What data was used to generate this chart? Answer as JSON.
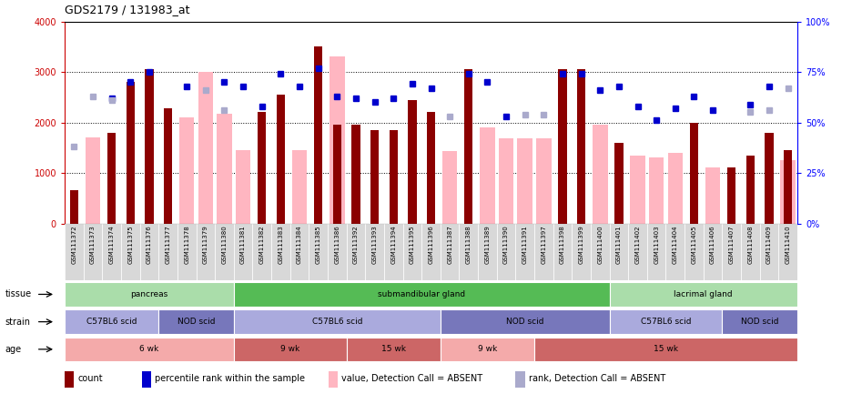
{
  "title": "GDS2179 / 131983_at",
  "samples": [
    "GSM111372",
    "GSM111373",
    "GSM111374",
    "GSM111375",
    "GSM111376",
    "GSM111377",
    "GSM111378",
    "GSM111379",
    "GSM111380",
    "GSM111381",
    "GSM111382",
    "GSM111383",
    "GSM111384",
    "GSM111385",
    "GSM111386",
    "GSM111392",
    "GSM111393",
    "GSM111394",
    "GSM111395",
    "GSM111396",
    "GSM111387",
    "GSM111388",
    "GSM111389",
    "GSM111390",
    "GSM111391",
    "GSM111397",
    "GSM111398",
    "GSM111399",
    "GSM111400",
    "GSM111401",
    "GSM111402",
    "GSM111403",
    "GSM111404",
    "GSM111405",
    "GSM111406",
    "GSM111407",
    "GSM111408",
    "GSM111409",
    "GSM111410"
  ],
  "count": [
    650,
    null,
    1800,
    2800,
    3050,
    2280,
    null,
    null,
    null,
    null,
    2200,
    2550,
    null,
    3500,
    1950,
    1950,
    1850,
    1850,
    2450,
    2200,
    null,
    3050,
    null,
    null,
    null,
    null,
    3050,
    3050,
    null,
    1600,
    null,
    null,
    null,
    2000,
    null,
    1100,
    1350,
    1800,
    1450
  ],
  "value_absent": [
    null,
    1700,
    null,
    null,
    null,
    null,
    2100,
    3000,
    2180,
    1450,
    null,
    null,
    1450,
    null,
    3300,
    null,
    null,
    null,
    null,
    null,
    1430,
    null,
    1900,
    1680,
    1680,
    1680,
    null,
    null,
    1950,
    null,
    1350,
    1300,
    1400,
    null,
    1100,
    null,
    null,
    null,
    1250
  ],
  "percentile_rank": [
    null,
    null,
    62,
    70,
    75,
    null,
    68,
    null,
    70,
    68,
    58,
    74,
    68,
    77,
    63,
    62,
    60,
    62,
    69,
    67,
    null,
    74,
    70,
    53,
    null,
    null,
    74,
    74,
    66,
    68,
    58,
    51,
    57,
    63,
    56,
    null,
    59,
    68,
    null
  ],
  "rank_absent": [
    38,
    63,
    61,
    null,
    null,
    null,
    null,
    66,
    56,
    null,
    null,
    null,
    null,
    null,
    null,
    null,
    null,
    null,
    null,
    null,
    53,
    null,
    null,
    null,
    54,
    54,
    null,
    null,
    null,
    null,
    null,
    null,
    null,
    null,
    null,
    null,
    55,
    56,
    67
  ],
  "ylim_left": [
    0,
    4000
  ],
  "ylim_right": [
    0,
    100
  ],
  "yticks_left": [
    0,
    1000,
    2000,
    3000,
    4000
  ],
  "yticks_right": [
    0,
    25,
    50,
    75,
    100
  ],
  "bar_color_count": "#8B0000",
  "bar_color_absent": "#FFB6C1",
  "dot_color_rank": "#0000CD",
  "dot_color_rank_absent": "#AAAACC",
  "tissue_regions": [
    {
      "label": "pancreas",
      "start": 0,
      "end": 9,
      "color": "#AADDAA"
    },
    {
      "label": "submandibular gland",
      "start": 9,
      "end": 29,
      "color": "#55BB55"
    },
    {
      "label": "lacrimal gland",
      "start": 29,
      "end": 39,
      "color": "#AADDAA"
    }
  ],
  "strain_regions": [
    {
      "label": "C57BL6 scid",
      "start": 0,
      "end": 5,
      "color": "#AAAADD"
    },
    {
      "label": "NOD scid",
      "start": 5,
      "end": 9,
      "color": "#7777BB"
    },
    {
      "label": "C57BL6 scid",
      "start": 9,
      "end": 20,
      "color": "#AAAADD"
    },
    {
      "label": "NOD scid",
      "start": 20,
      "end": 29,
      "color": "#7777BB"
    },
    {
      "label": "C57BL6 scid",
      "start": 29,
      "end": 35,
      "color": "#AAAADD"
    },
    {
      "label": "NOD scid",
      "start": 35,
      "end": 39,
      "color": "#7777BB"
    }
  ],
  "age_regions": [
    {
      "label": "6 wk",
      "start": 0,
      "end": 9,
      "color": "#F4AAAA"
    },
    {
      "label": "9 wk",
      "start": 9,
      "end": 15,
      "color": "#CC6666"
    },
    {
      "label": "15 wk",
      "start": 15,
      "end": 20,
      "color": "#CC6666"
    },
    {
      "label": "9 wk",
      "start": 20,
      "end": 25,
      "color": "#F4AAAA"
    },
    {
      "label": "15 wk",
      "start": 25,
      "end": 39,
      "color": "#CC6666"
    }
  ],
  "legend_items": [
    {
      "label": "count",
      "color": "#8B0000"
    },
    {
      "label": "percentile rank within the sample",
      "color": "#0000CD"
    },
    {
      "label": "value, Detection Call = ABSENT",
      "color": "#FFB6C1"
    },
    {
      "label": "rank, Detection Call = ABSENT",
      "color": "#AAAACC"
    }
  ]
}
